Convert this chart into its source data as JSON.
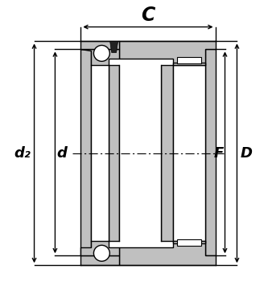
{
  "bg_color": "#ffffff",
  "gray_fill": "#c0c0c0",
  "white_fill": "#ffffff",
  "black": "#000000",
  "label_C": "C",
  "label_d2": "d₂",
  "label_d": "d",
  "label_F": "F",
  "label_D": "D",
  "fig_width": 3.33,
  "fig_height": 3.81,
  "dpi": 100
}
